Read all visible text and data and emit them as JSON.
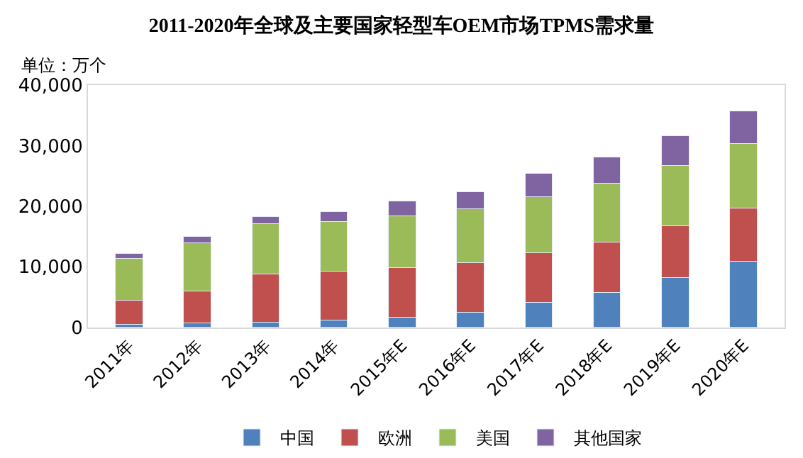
{
  "chart_data": {
    "type": "bar",
    "stacked": true,
    "title": "2011-2020年全球及主要国家轻型车OEM市场TPMS需求量",
    "ylabel": "单位：万个",
    "categories": [
      "2011年",
      "2012年",
      "2013年",
      "2014年",
      "2015年E",
      "2016年E",
      "2017年E",
      "2018年E",
      "2019年E",
      "2020年E"
    ],
    "series": [
      {
        "name": "中国",
        "color": "#4f81bd",
        "values": [
          500,
          700,
          800,
          1150,
          1700,
          2500,
          4100,
          5800,
          8200,
          10900
        ]
      },
      {
        "name": "欧洲",
        "color": "#c0504d",
        "values": [
          4000,
          5300,
          8000,
          8150,
          8200,
          8200,
          8200,
          8300,
          8500,
          8800
        ]
      },
      {
        "name": "美国",
        "color": "#9bbb59",
        "values": [
          6900,
          8000,
          8300,
          8200,
          8500,
          8900,
          9200,
          9700,
          10000,
          10600
        ]
      },
      {
        "name": "其他国家",
        "color": "#8064a2",
        "values": [
          750,
          1000,
          1200,
          1600,
          2400,
          2800,
          3900,
          4300,
          4900,
          5400
        ]
      }
    ],
    "ylim": [
      0,
      40000
    ],
    "yticks": [
      {
        "value": 0,
        "label": "0"
      },
      {
        "value": 10000,
        "label": "10,000"
      },
      {
        "value": 20000,
        "label": "20,000"
      },
      {
        "value": 30000,
        "label": "30,000"
      },
      {
        "value": 40000,
        "label": "40,000"
      }
    ],
    "grid": false,
    "legend": "bottom"
  }
}
